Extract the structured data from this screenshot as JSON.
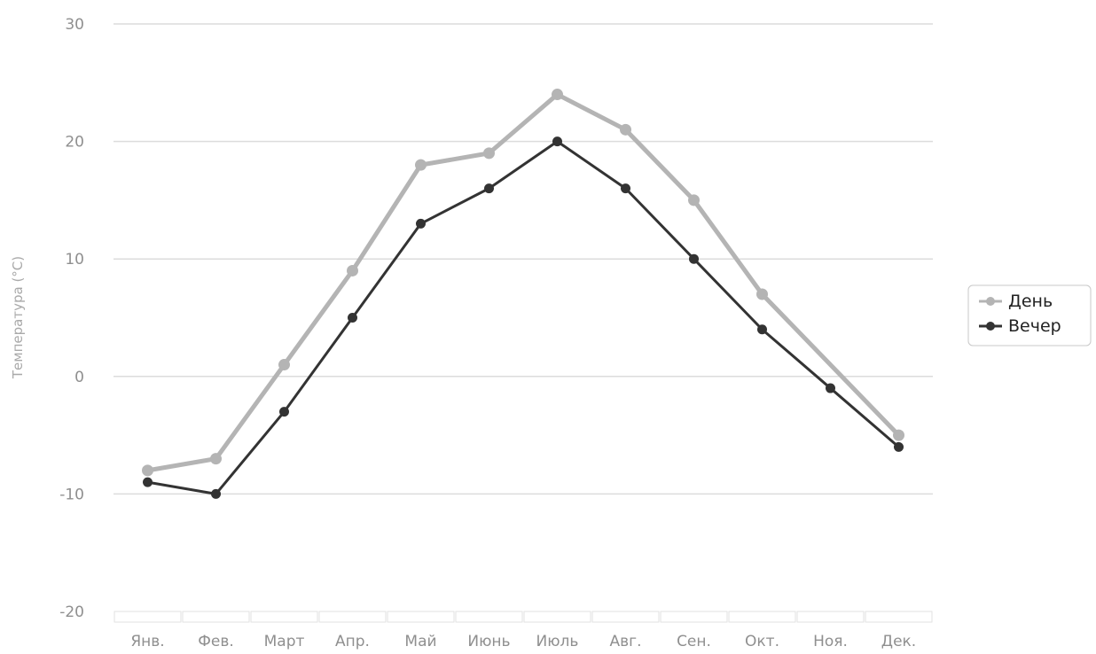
{
  "chart_data": {
    "type": "line",
    "title": "",
    "xlabel": "",
    "ylabel": "Температура (°C)",
    "categories": [
      "Янв.",
      "Фев.",
      "Март",
      "Апр.",
      "Май",
      "Июнь",
      "Июль",
      "Авг.",
      "Сен.",
      "Окт.",
      "Ноя.",
      "Дек."
    ],
    "ylim": [
      -20,
      30
    ],
    "yticks": [
      "30",
      "20",
      "10",
      "0",
      "-10",
      "-20"
    ],
    "grid": true,
    "legend_position": "right",
    "series": [
      {
        "name": "День",
        "color": "#b4b4b4",
        "values": [
          -8,
          -7,
          1,
          9,
          18,
          19,
          24,
          21,
          15,
          7,
          null,
          -5
        ]
      },
      {
        "name": "Вечер",
        "color": "#333333",
        "values": [
          -9,
          -10,
          -3,
          5,
          13,
          16,
          20,
          16,
          10,
          4,
          -1,
          -6
        ]
      }
    ]
  }
}
